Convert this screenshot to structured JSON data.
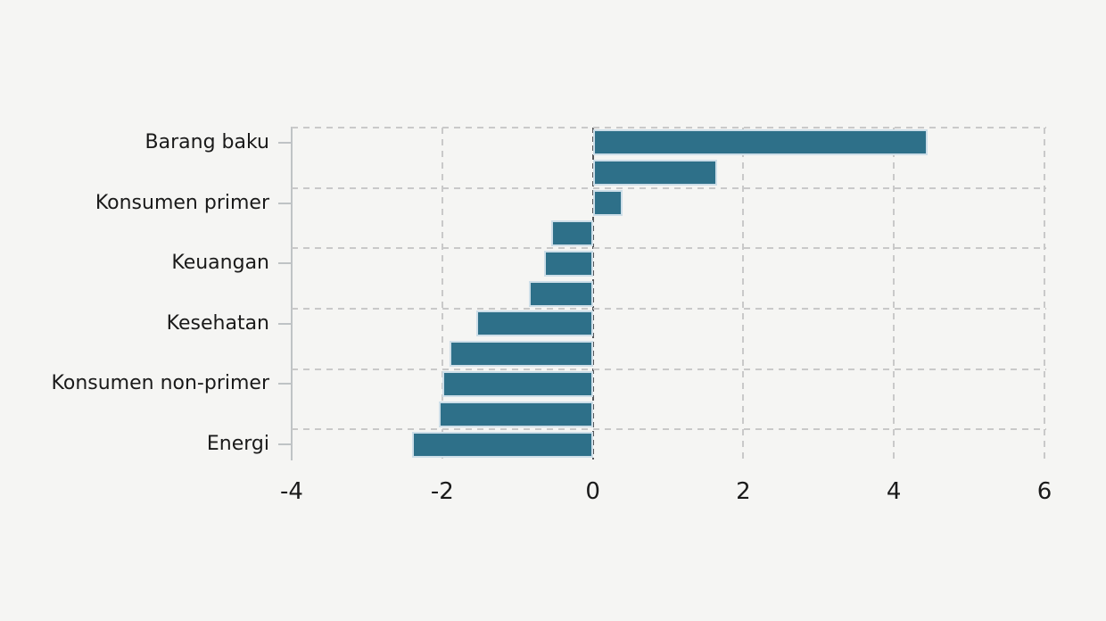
{
  "chart_data": {
    "type": "bar",
    "orientation": "horizontal",
    "title": "",
    "xlabel": "",
    "ylabel": "",
    "xlim": [
      -4,
      6
    ],
    "x_ticks": [
      -4,
      -2,
      0,
      2,
      4,
      6
    ],
    "x_tick_labels": [
      "-4",
      "-2",
      "0",
      "2",
      "4",
      "6"
    ],
    "grid": "dashed vertical lines at x ticks, dashed horizontal lines at every second bar boundary",
    "legend": "none",
    "zero_line": true,
    "bars": [
      {
        "label": "Barang baku",
        "value": 4.45
      },
      {
        "label": "",
        "value": 1.65
      },
      {
        "label": "Konsumen primer",
        "value": 0.4
      },
      {
        "label": "",
        "value": -0.55
      },
      {
        "label": "Keuangan",
        "value": -0.65
      },
      {
        "label": "",
        "value": -0.85
      },
      {
        "label": "Kesehatan",
        "value": -1.55
      },
      {
        "label": "",
        "value": -1.9
      },
      {
        "label": "Konsumen non-primer",
        "value": -2.0
      },
      {
        "label": "",
        "value": -2.05
      },
      {
        "label": "Energi",
        "value": -2.4
      }
    ],
    "colors": {
      "background": "#f5f5f3",
      "bar_fill": "#2e7089",
      "bar_edge": "#cddee8",
      "grid_line": "#c9c9c9",
      "zero_line": "#58585a",
      "spine": "#bfc3c5",
      "text": "#1a1a1a"
    }
  }
}
